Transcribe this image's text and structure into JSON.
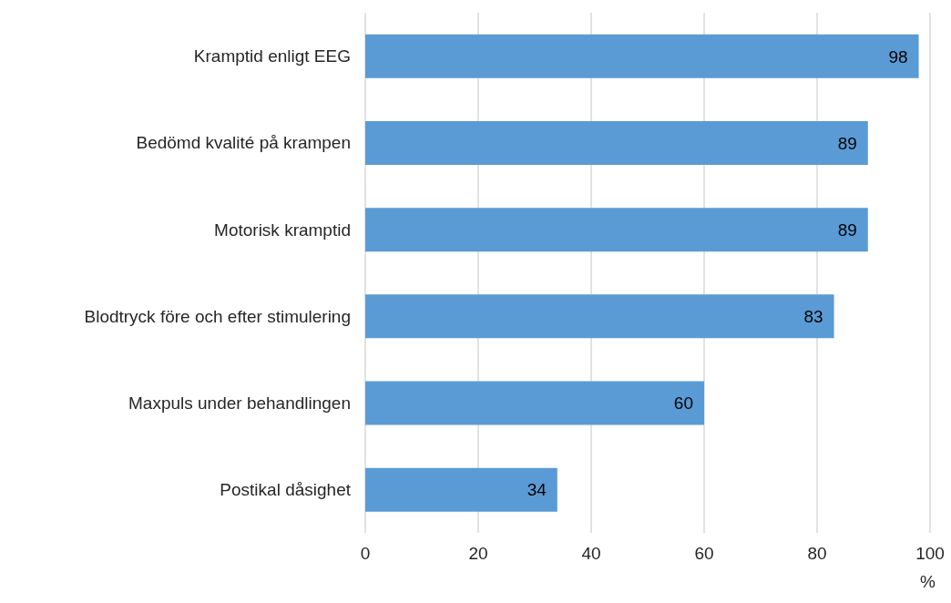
{
  "chart_data": {
    "type": "bar",
    "orientation": "horizontal",
    "xlabel": "%",
    "categories": [
      "Kramptid enligt EEG",
      "Bedömd kvalité på krampen",
      "Motorisk kramptid",
      "Blodtryck före och efter stimulering",
      "Maxpuls under behandlingen",
      "Postikal dåsighet"
    ],
    "values": [
      98,
      89,
      89,
      83,
      60,
      34
    ],
    "color": "#5b9bd5",
    "xlim": [
      0,
      100
    ],
    "xticks": [
      0,
      20,
      40,
      60,
      80,
      100
    ],
    "grid": "x",
    "data_labels": true
  }
}
